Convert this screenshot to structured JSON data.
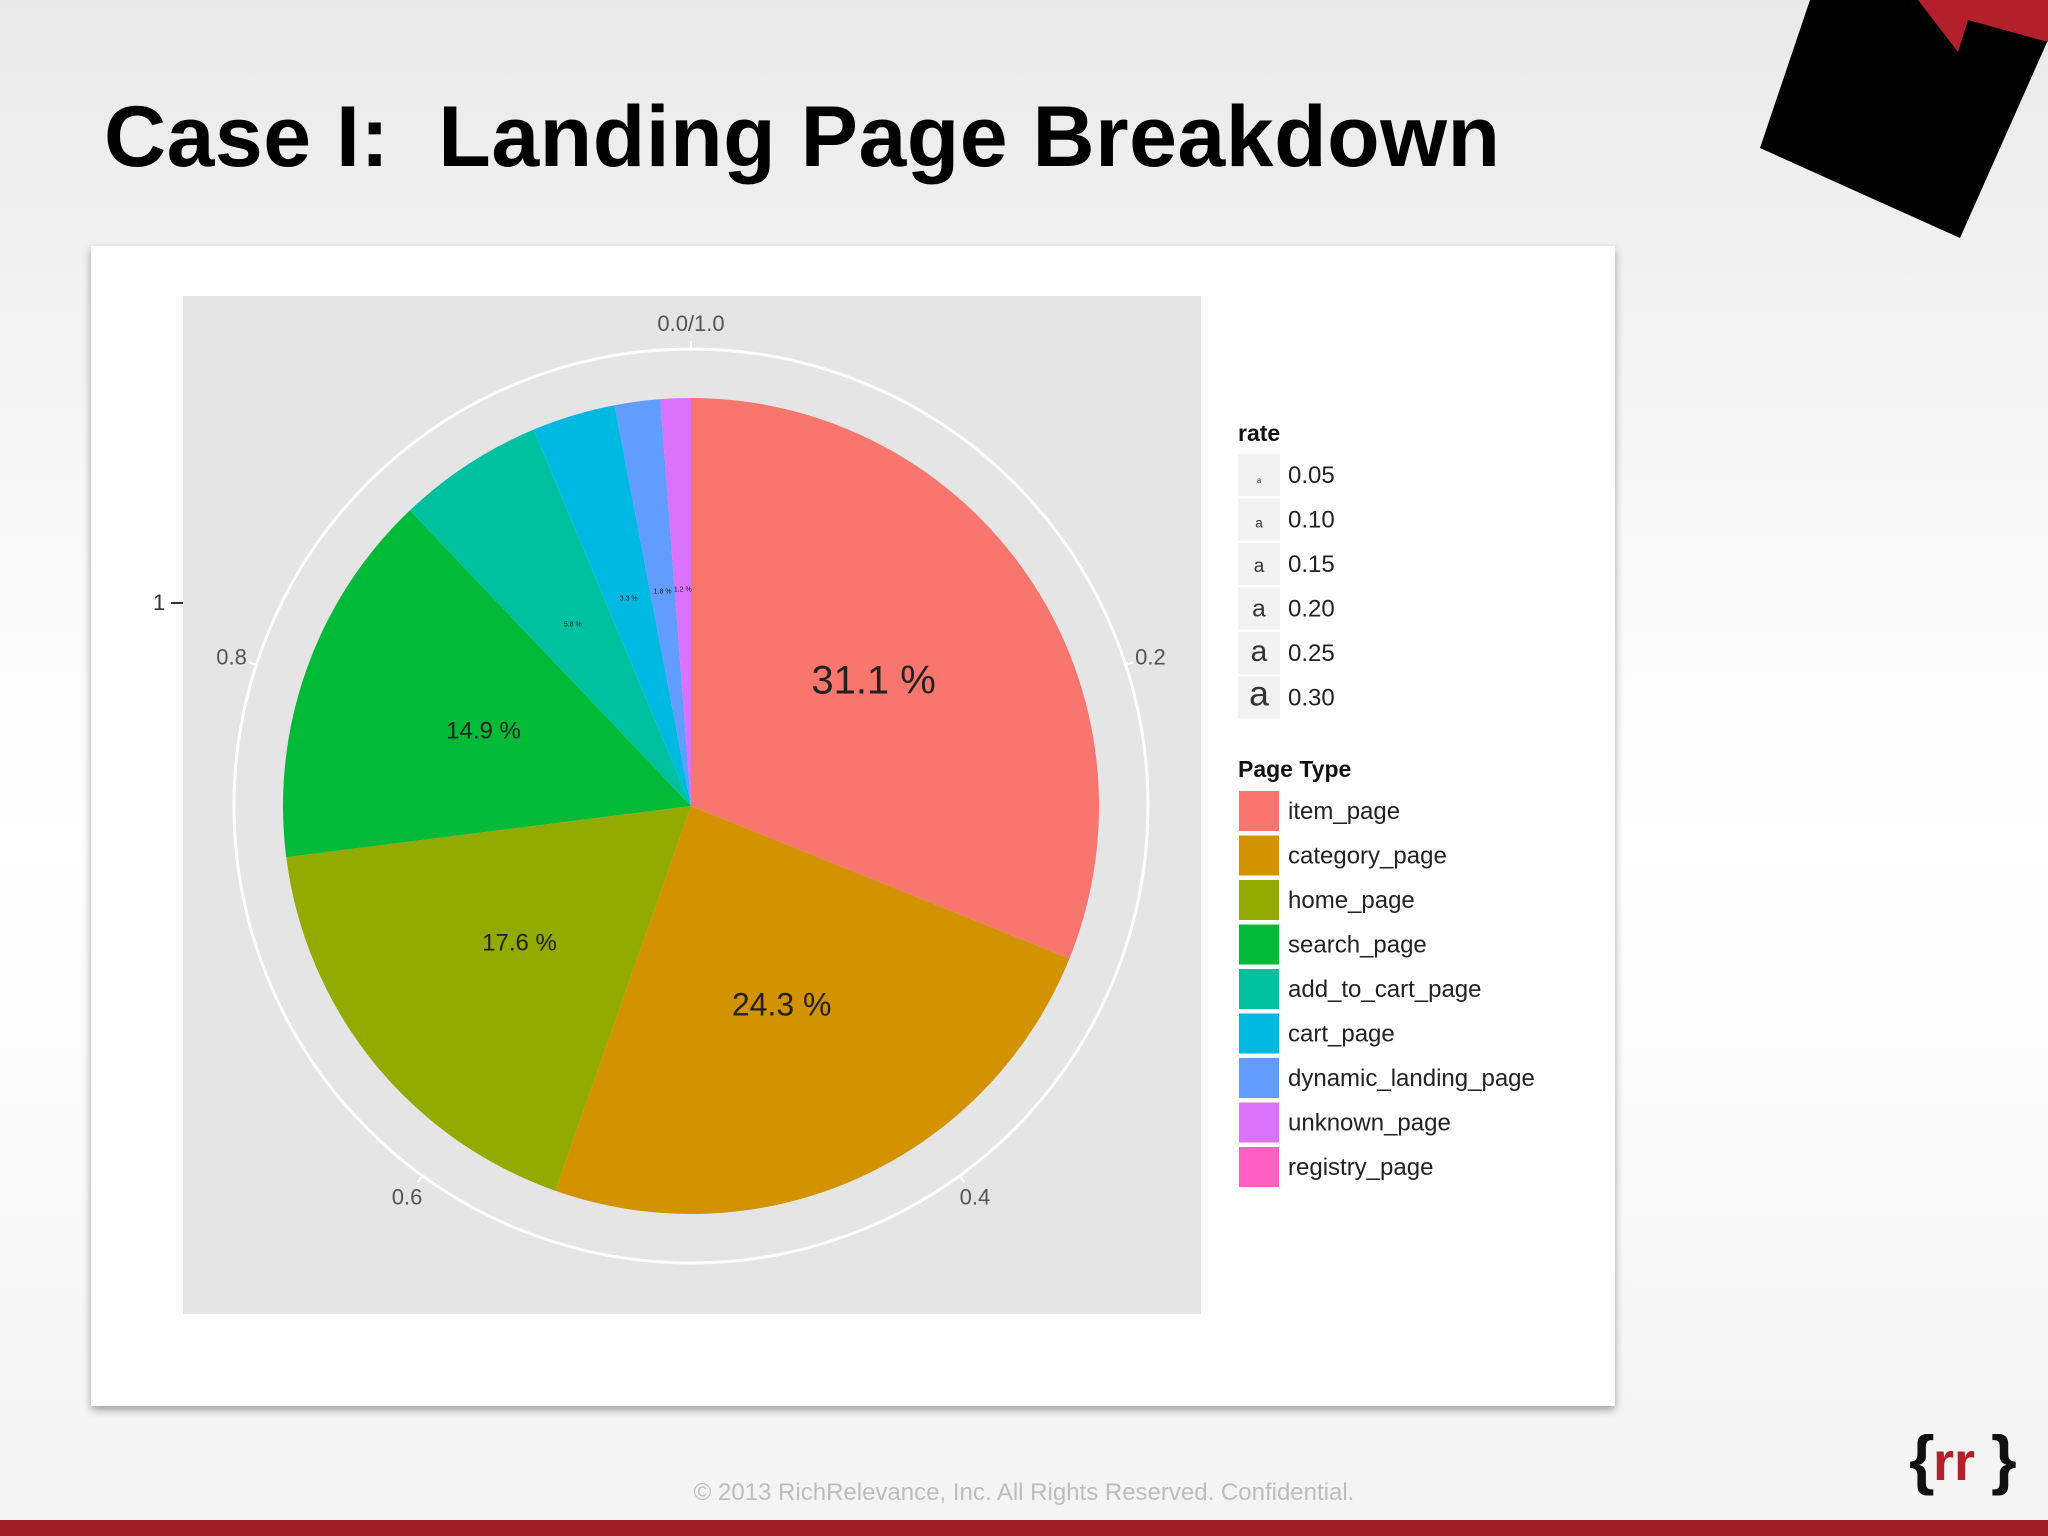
{
  "slide": {
    "title": "Case I:  Landing Page Breakdown",
    "footer": "© 2013 RichRelevance, Inc. All Rights Reserved. Confidential.",
    "logo_text": "rr",
    "colors": {
      "accent": "#a01e25",
      "panel": "#e5e5e5"
    }
  },
  "chart_data": {
    "type": "pie",
    "y_axis_tick": "1",
    "theta_ticks": [
      "0.0/1.0",
      "0.2",
      "0.4",
      "0.6",
      "0.8"
    ],
    "legend_rate": {
      "title": "rate",
      "glyph": "a",
      "entries": [
        "0.05",
        "0.10",
        "0.15",
        "0.20",
        "0.25",
        "0.30"
      ]
    },
    "legend_page_type": {
      "title": "Page Type",
      "placement": "right"
    },
    "slices": [
      {
        "name": "item_page",
        "value": 0.311,
        "label": "31.1 %",
        "color": "#F8766D"
      },
      {
        "name": "category_page",
        "value": 0.243,
        "label": "24.3 %",
        "color": "#D39200"
      },
      {
        "name": "home_page",
        "value": 0.176,
        "label": "17.6 %",
        "color": "#93AA00"
      },
      {
        "name": "search_page",
        "value": 0.149,
        "label": "14.9 %",
        "color": "#00BA38"
      },
      {
        "name": "add_to_cart_page",
        "value": 0.058,
        "label": "5.8 %",
        "color": "#00C19F"
      },
      {
        "name": "cart_page",
        "value": 0.033,
        "label": "3.3 %",
        "color": "#00B9E3"
      },
      {
        "name": "dynamic_landing_page",
        "value": 0.018,
        "label": "1.8 %",
        "color": "#619CFF"
      },
      {
        "name": "unknown_page",
        "value": 0.012,
        "label": "1.2 %",
        "color": "#DB72FB"
      },
      {
        "name": "registry_page",
        "value": 0.0,
        "label": "",
        "color": "#FF61C3"
      }
    ]
  }
}
